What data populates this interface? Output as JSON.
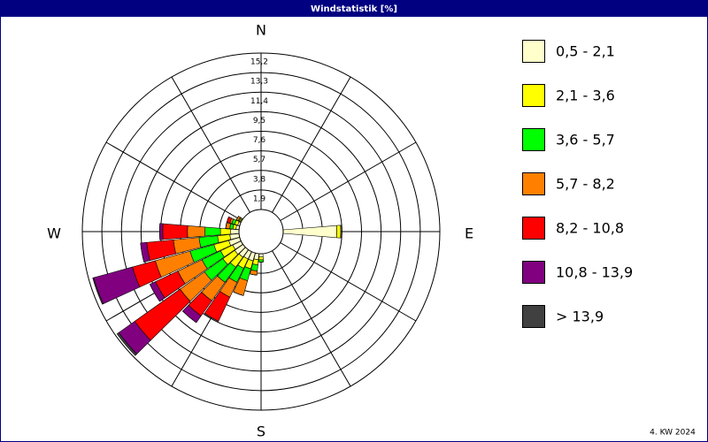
{
  "chart_data": {
    "type": "windrose",
    "title": "Windstatistik [%]",
    "footnote": "4. KW 2024",
    "compass_labels": {
      "north": "N",
      "east": "E",
      "south": "S",
      "west": "W"
    },
    "directions": [
      90,
      180,
      190,
      200,
      210,
      220,
      230,
      240,
      250,
      260,
      270,
      280,
      290,
      300
    ],
    "ylim": [
      0,
      15.2
    ],
    "yticks": [
      {
        "value": 1.9,
        "label": "1,9"
      },
      {
        "value": 3.8,
        "label": "3,8"
      },
      {
        "value": 5.7,
        "label": "5,7"
      },
      {
        "value": 7.6,
        "label": "7,6"
      },
      {
        "value": 9.5,
        "label": "9,5"
      },
      {
        "value": 11.4,
        "label": "11,4"
      },
      {
        "value": 13.3,
        "label": "13,3"
      },
      {
        "value": 15.2,
        "label": "15,2"
      }
    ],
    "grid": true,
    "series": [
      {
        "name": "0,5 - 2,1",
        "color": "#ffffcc",
        "values": [
          5.2,
          0.3,
          0.6,
          0.8,
          0.8,
          0.9,
          1.0,
          0.9,
          1.1,
          0.9,
          0.8,
          0.3,
          0.2,
          0.1
        ]
      },
      {
        "name": "2,1 - 3,6",
        "color": "#ffff00",
        "values": [
          0.4,
          0.3,
          0.5,
          0.8,
          1.0,
          1.2,
          1.4,
          1.3,
          1.5,
          1.2,
          1.0,
          0.3,
          0.3,
          0.1
        ]
      },
      {
        "name": "3,6 - 5,7",
        "color": "#00ff00",
        "values": [
          0,
          0.2,
          0.6,
          1.2,
          1.5,
          1.8,
          2.2,
          2.0,
          2.4,
          1.8,
          1.5,
          0.3,
          0.3,
          0.1
        ]
      },
      {
        "name": "5,7 - 8,2",
        "color": "#ff8000",
        "values": [
          0,
          0,
          0.4,
          1.5,
          1.6,
          2.2,
          2.9,
          2.6,
          3.5,
          2.5,
          1.7,
          0.4,
          0.2,
          0.2
        ]
      },
      {
        "name": "8,2 - 10,8",
        "color": "#ff0000",
        "values": [
          0,
          0,
          0,
          0,
          2.6,
          1.8,
          5.4,
          2.4,
          2.3,
          2.6,
          2.4,
          0,
          0.3,
          0
        ]
      },
      {
        "name": "10,8 - 13,9",
        "color": "#800080",
        "values": [
          0,
          0,
          0,
          0,
          0,
          0.8,
          1.9,
          0.6,
          3.9,
          0.6,
          0.3,
          0,
          0,
          0
        ]
      },
      {
        "name": " > 13,9",
        "color": "#404040",
        "values": [
          0,
          0,
          0,
          0,
          0,
          0,
          0.2,
          0,
          0.1,
          0,
          0,
          0,
          0,
          0
        ]
      }
    ]
  }
}
